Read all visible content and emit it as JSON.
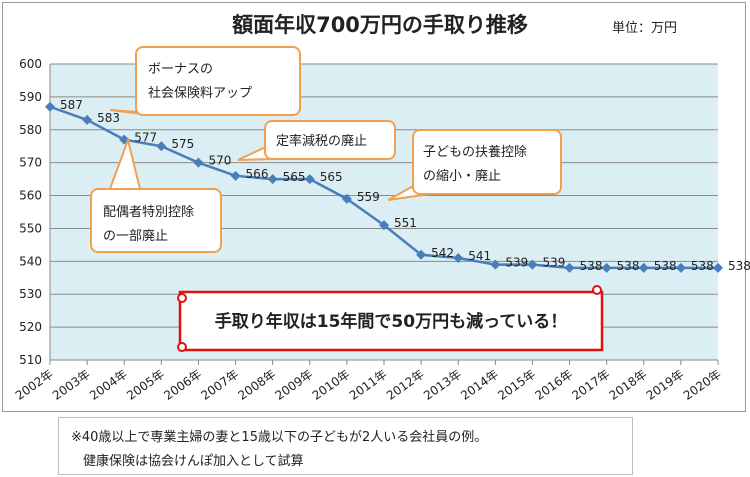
{
  "chart_data": {
    "type": "line",
    "title": "額面年収700万円の手取り推移",
    "unit_label": "単位：万円",
    "categories": [
      "2002年",
      "2003年",
      "2004年",
      "2005年",
      "2006年",
      "2007年",
      "2008年",
      "2009年",
      "2010年",
      "2011年",
      "2012年",
      "2013年",
      "2014年",
      "2015年",
      "2016年",
      "2017年",
      "2018年",
      "2019年",
      "2020年"
    ],
    "values": [
      587,
      583,
      577,
      575,
      570,
      566,
      565,
      565,
      559,
      551,
      542,
      541,
      539,
      539,
      538,
      538,
      538,
      538,
      538
    ],
    "data_labels": [
      "587",
      "583",
      "577",
      "575",
      "570",
      "566",
      "565",
      "565",
      "559",
      "551",
      "542",
      "541",
      "539",
      "539",
      "538",
      "538",
      "538",
      "538",
      "538"
    ],
    "ylim": [
      510,
      600
    ],
    "yticks": [
      "510",
      "520",
      "530",
      "540",
      "550",
      "560",
      "570",
      "580",
      "590",
      "600"
    ],
    "grid": true,
    "series_color": "#4a7ebb",
    "plot_bg": "#dbeef4",
    "annotations": [
      {
        "lines": [
          "ボーナスの",
          "社会保険料アップ"
        ]
      },
      {
        "lines": [
          "定率減税の廃止"
        ]
      },
      {
        "lines": [
          "子どもの扶養控除",
          "の縮小・廃止"
        ]
      },
      {
        "lines": [
          "配偶者特別控除",
          "の一部廃止"
        ]
      }
    ],
    "callout_border": "#f0a050",
    "banner_text": "手取り年収は15年間で50万円も減っている！",
    "banner_border": "#e01010"
  },
  "note": {
    "line1": "※40歳以上で専業主婦の妻と15歳以下の子どもが2人いる会社員の例。",
    "line2": "健康保険は協会けんぽ加入として試算"
  }
}
